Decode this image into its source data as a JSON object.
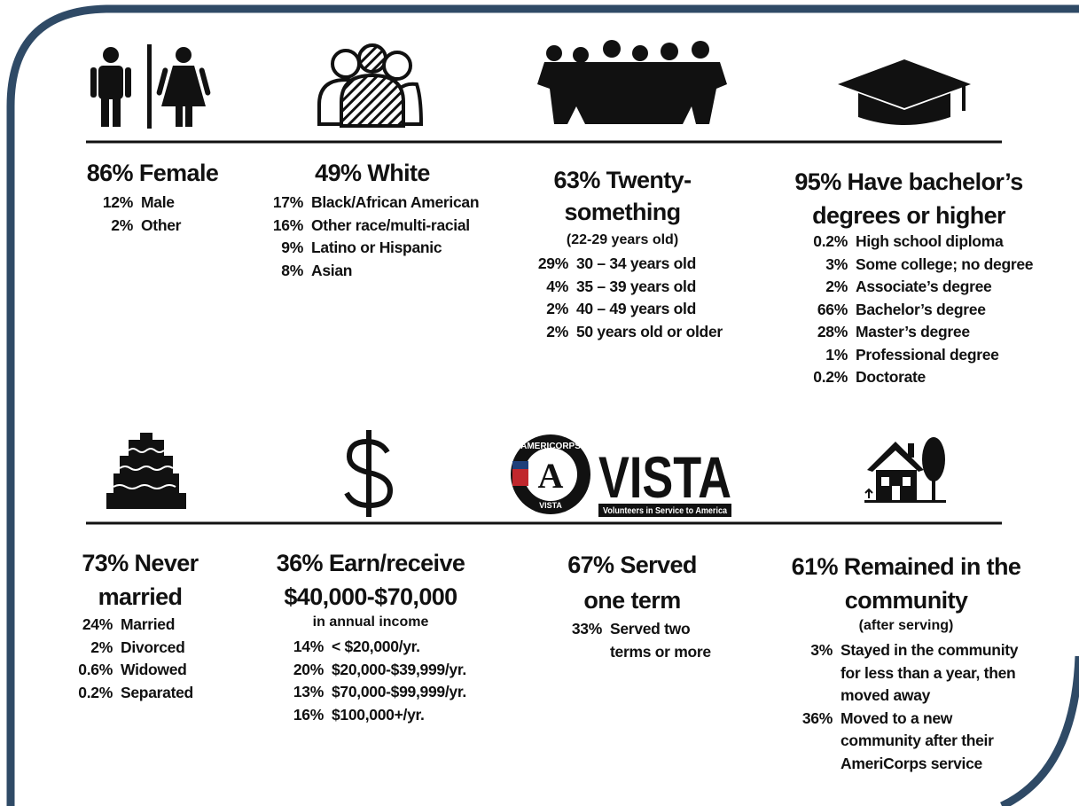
{
  "top_row": [
    {
      "headline": [
        "86% Female"
      ],
      "items": [
        {
          "pct": "12%",
          "label": [
            "Male"
          ]
        },
        {
          "pct": "2%",
          "label": [
            "Other"
          ]
        }
      ]
    },
    {
      "headline": [
        "49% White"
      ],
      "items": [
        {
          "pct": "17%",
          "label": [
            "Black/African American"
          ]
        },
        {
          "pct": "16%",
          "label": [
            "Other race/multi-racial"
          ]
        },
        {
          "pct": "9%",
          "label": [
            "Latino or Hispanic"
          ]
        },
        {
          "pct": "8%",
          "label": [
            "Asian"
          ]
        }
      ]
    },
    {
      "headline": [
        "63% Twenty-",
        "something"
      ],
      "note": "(22-29 years old)",
      "items": [
        {
          "pct": "29%",
          "label": [
            "30 – 34 years old"
          ]
        },
        {
          "pct": "4%",
          "label": [
            "35 – 39 years old"
          ]
        },
        {
          "pct": "2%",
          "label": [
            "40 – 49 years old"
          ]
        },
        {
          "pct": "2%",
          "label": [
            "50 years old or older"
          ]
        }
      ]
    },
    {
      "headline": [
        "95% Have bachelor’s",
        "degrees or higher"
      ],
      "items": [
        {
          "pct": "0.2%",
          "label": [
            "High school diploma"
          ]
        },
        {
          "pct": "3%",
          "label": [
            "Some college; no degree"
          ]
        },
        {
          "pct": "2%",
          "label": [
            "Associate’s degree"
          ]
        },
        {
          "pct": "66%",
          "label": [
            "Bachelor’s degree"
          ]
        },
        {
          "pct": "28%",
          "label": [
            "Master’s degree"
          ]
        },
        {
          "pct": "1%",
          "label": [
            "Professional degree"
          ]
        },
        {
          "pct": "0.2%",
          "label": [
            "Doctorate"
          ]
        }
      ]
    }
  ],
  "bottom_row": [
    {
      "headline": [
        "73% Never",
        "married"
      ],
      "items": [
        {
          "pct": "24%",
          "label": [
            "Married"
          ]
        },
        {
          "pct": "2%",
          "label": [
            "Divorced"
          ]
        },
        {
          "pct": "0.6%",
          "label": [
            "Widowed"
          ]
        },
        {
          "pct": "0.2%",
          "label": [
            "Separated"
          ]
        }
      ]
    },
    {
      "headline": [
        "36% Earn/receive",
        "$40,000-$70,000"
      ],
      "note": "in annual income",
      "items": [
        {
          "pct": "14%",
          "label": [
            "< $20,000/yr."
          ]
        },
        {
          "pct": "20%",
          "label": [
            "$20,000-$39,999/yr."
          ]
        },
        {
          "pct": "13%",
          "label": [
            "$70,000-$99,999/yr."
          ]
        },
        {
          "pct": "16%",
          "label": [
            "$100,000+/yr."
          ]
        }
      ]
    },
    {
      "headline": [
        "67% Served",
        "one term"
      ],
      "items": [
        {
          "pct": "33%",
          "label": [
            "Served two",
            "terms or more"
          ]
        }
      ]
    },
    {
      "headline": [
        "61% Remained in the",
        "community"
      ],
      "note": "(after serving)",
      "items": [
        {
          "pct": "3%",
          "label": [
            "Stayed in the community",
            "for less than a year, then",
            "moved away"
          ]
        },
        {
          "pct": "36%",
          "label": [
            "Moved to a new",
            "community after their",
            "AmeriCorps service"
          ]
        }
      ]
    }
  ],
  "logo": {
    "seal_top": "AMERICORPS",
    "seal_letter": "A",
    "seal_bottom": "VISTA",
    "name": "VISTA",
    "tagline": "Volunteers in Service to America"
  }
}
